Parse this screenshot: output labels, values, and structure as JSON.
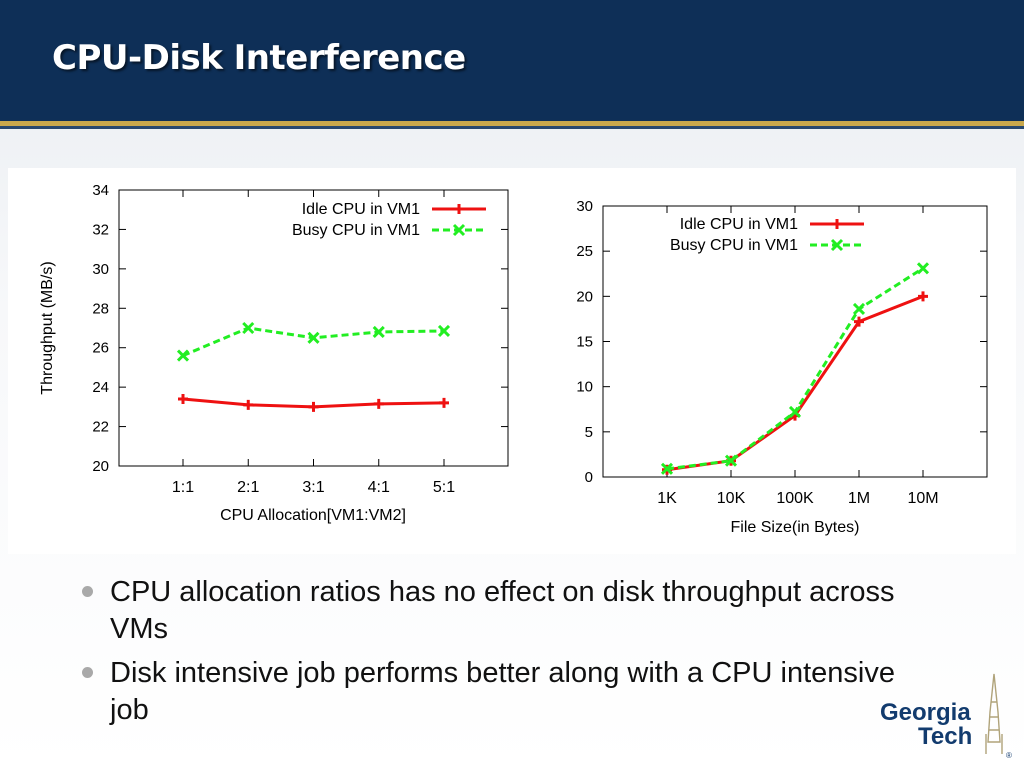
{
  "slide": {
    "title": "CPU-Disk Interference"
  },
  "bullets": [
    "CPU allocation ratios has no effect on disk throughput across VMs",
    "Disk intensive job performs better along with a CPU intensive job"
  ],
  "logo": {
    "line1": "Georgia",
    "line2": "Tech",
    "mark": "®"
  },
  "colors": {
    "idle": "#ee1111",
    "busy": "#22ee22",
    "header": "#0e2f57",
    "gold": "#c9a84c"
  },
  "chart_data": [
    {
      "type": "line",
      "xlabel": "CPU Allocation[VM1:VM2]",
      "ylabel": "Throughput (MB/s)",
      "categories": [
        "1:1",
        "2:1",
        "3:1",
        "4:1",
        "5:1"
      ],
      "ylim": [
        20,
        34
      ],
      "yticks": [
        20,
        22,
        24,
        26,
        28,
        30,
        32,
        34
      ],
      "legend_position": "top-right",
      "grid": false,
      "series": [
        {
          "name": "Idle CPU in VM1",
          "color": "#ee1111",
          "marker": "plus",
          "dash": false,
          "values": [
            23.4,
            23.1,
            23.0,
            23.15,
            23.2
          ]
        },
        {
          "name": "Busy CPU in VM1",
          "color": "#22ee22",
          "marker": "x",
          "dash": true,
          "values": [
            25.6,
            27.0,
            26.5,
            26.8,
            26.85
          ]
        }
      ]
    },
    {
      "type": "line",
      "xlabel": "File Size(in Bytes)",
      "ylabel": "",
      "categories": [
        "1K",
        "10K",
        "100K",
        "1M",
        "10M"
      ],
      "ylim": [
        0,
        30
      ],
      "yticks": [
        0,
        5,
        10,
        15,
        20,
        25,
        30
      ],
      "legend_position": "top-left",
      "grid": false,
      "series": [
        {
          "name": "Idle CPU in VM1",
          "color": "#ee1111",
          "marker": "plus",
          "dash": false,
          "values": [
            0.8,
            1.8,
            6.8,
            17.2,
            20.0
          ]
        },
        {
          "name": "Busy CPU in VM1",
          "color": "#22ee22",
          "marker": "x",
          "dash": true,
          "values": [
            0.9,
            1.8,
            7.2,
            18.6,
            23.1
          ]
        }
      ]
    }
  ]
}
